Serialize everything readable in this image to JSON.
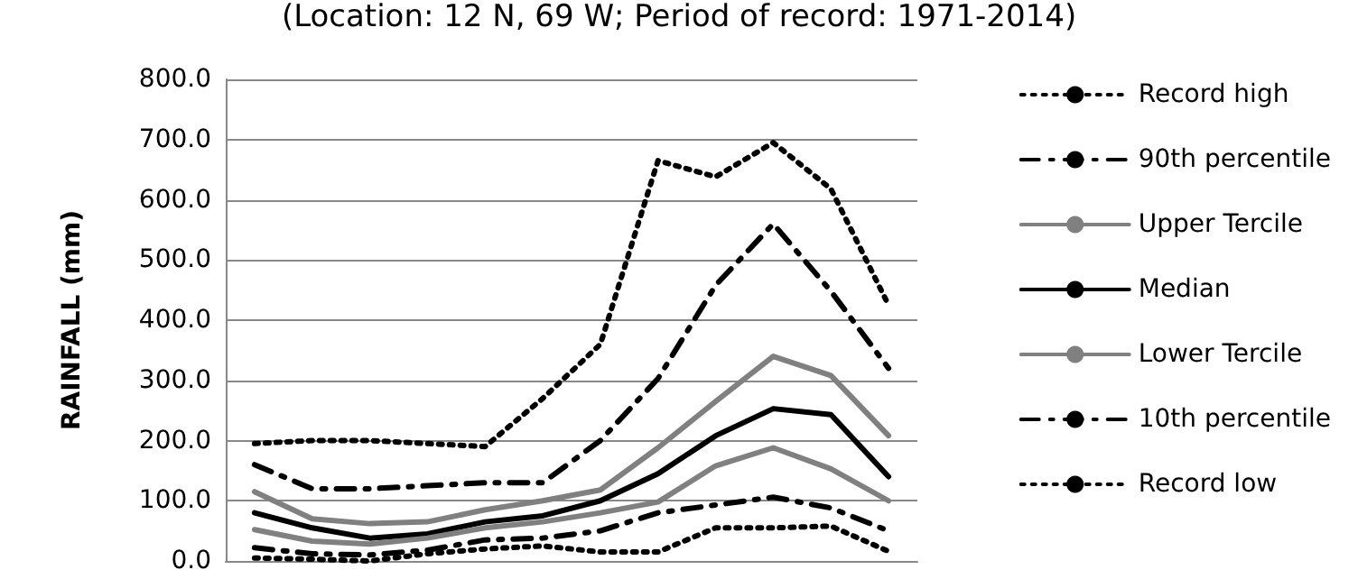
{
  "chart_data": {
    "type": "line",
    "title": "(Location: 12 N, 69 W; Period of record: 1971-2014)",
    "ylabel": "RAINFALL (mm)",
    "categories": [
      null,
      null,
      null,
      null,
      null,
      null,
      null,
      null,
      null,
      null,
      null,
      null
    ],
    "ylim": [
      0,
      800
    ],
    "yticks": [
      {
        "value": 0,
        "label": "0.0"
      },
      {
        "value": 100,
        "label": "100.0"
      },
      {
        "value": 200,
        "label": "200.0"
      },
      {
        "value": 300,
        "label": "300.0"
      },
      {
        "value": 400,
        "label": "400.0"
      },
      {
        "value": 500,
        "label": "500.0"
      },
      {
        "value": 600,
        "label": "600.0"
      },
      {
        "value": 700,
        "label": "700.0"
      },
      {
        "value": 800,
        "label": "800.0"
      }
    ],
    "grid": "y",
    "legend": "right",
    "tick_labels": "y",
    "marker": "none",
    "series": [
      {
        "name": "Record high",
        "color": "#000000",
        "line_style": "dotted",
        "values": [
          195,
          200,
          200,
          195,
          190,
          270,
          360,
          665,
          638,
          695,
          618,
          425
        ]
      },
      {
        "name": "90th percentile",
        "color": "#000000",
        "line_style": "dashed",
        "values": [
          160,
          120,
          120,
          125,
          130,
          130,
          200,
          303,
          458,
          560,
          448,
          320
        ]
      },
      {
        "name": "Upper Tercile",
        "color": "#808080",
        "line_style": "solid",
        "values": [
          115,
          70,
          62,
          65,
          85,
          100,
          118,
          188,
          265,
          340,
          308,
          208
        ]
      },
      {
        "name": "Median",
        "color": "#000000",
        "line_style": "solid",
        "values": [
          80,
          55,
          38,
          45,
          65,
          75,
          100,
          145,
          208,
          253,
          243,
          140
        ]
      },
      {
        "name": "Lower Tercile",
        "color": "#808080",
        "line_style": "solid",
        "values": [
          52,
          33,
          28,
          38,
          55,
          65,
          80,
          98,
          158,
          188,
          153,
          100
        ]
      },
      {
        "name": "10th percentile",
        "color": "#000000",
        "line_style": "dashed",
        "values": [
          22,
          12,
          10,
          18,
          35,
          38,
          50,
          80,
          93,
          106,
          88,
          50
        ]
      },
      {
        "name": "Record low",
        "color": "#000000",
        "line_style": "dotted",
        "values": [
          5,
          3,
          0,
          12,
          20,
          25,
          15,
          15,
          55,
          55,
          58,
          16
        ]
      }
    ]
  }
}
